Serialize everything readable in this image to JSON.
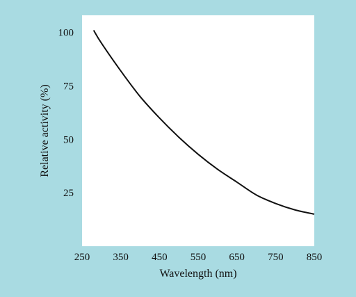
{
  "chart_data": {
    "type": "line",
    "title": "",
    "xlabel": "Wavelength (nm)",
    "ylabel": "Relative activity (%)",
    "xlim": [
      250,
      850
    ],
    "ylim": [
      0,
      108
    ],
    "x_ticks": [
      250,
      350,
      450,
      550,
      650,
      750,
      850
    ],
    "y_ticks": [
      25,
      50,
      75,
      100
    ],
    "grid": false,
    "series": [
      {
        "x": [
          280,
          300,
          350,
          400,
          450,
          500,
          550,
          600,
          650,
          700,
          750,
          800,
          850
        ],
        "y": [
          101,
          95,
          82,
          70,
          60,
          51,
          43,
          36,
          30,
          24,
          20,
          17,
          15
        ]
      }
    ]
  },
  "colors": {
    "background": "#a9dbe2",
    "plot_area": "#ffffff",
    "line": "#111111"
  }
}
